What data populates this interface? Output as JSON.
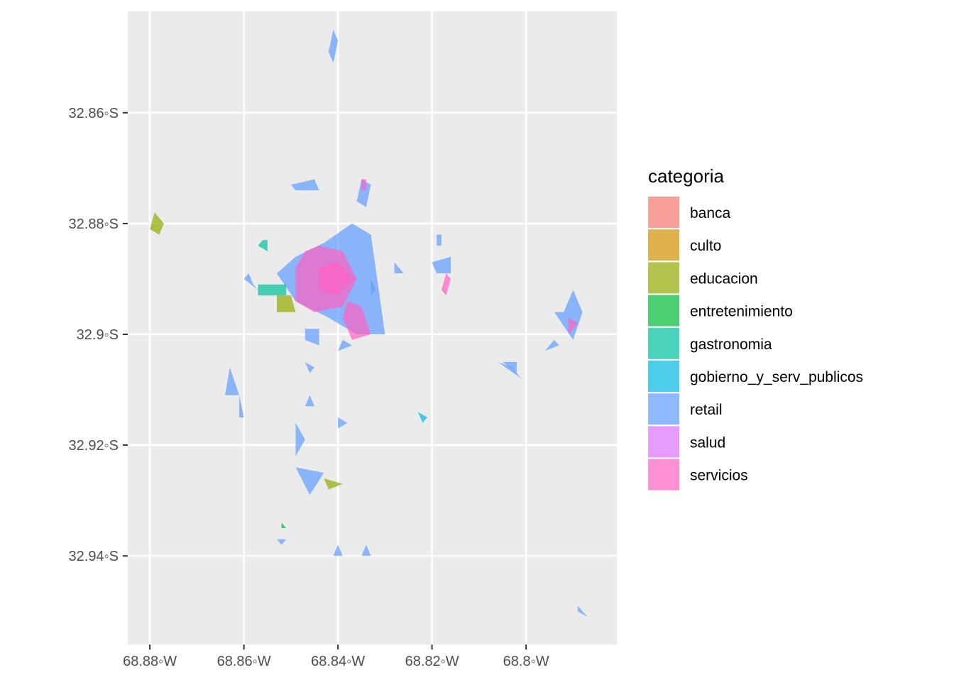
{
  "chart_data": {
    "type": "map",
    "x_ticks": [
      {
        "value": -68.88,
        "label": "68.88◦W"
      },
      {
        "value": -68.86,
        "label": "68.86◦W"
      },
      {
        "value": -68.84,
        "label": "68.84◦W"
      },
      {
        "value": -68.82,
        "label": "68.82◦W"
      },
      {
        "value": -68.8,
        "label": "68.8◦W"
      }
    ],
    "y_ticks": [
      {
        "value": -32.86,
        "label": "32.86◦S"
      },
      {
        "value": -32.88,
        "label": "32.88◦S"
      },
      {
        "value": -32.9,
        "label": "32.9◦S"
      },
      {
        "value": -32.92,
        "label": "32.92◦S"
      },
      {
        "value": -32.94,
        "label": "32.94◦S"
      }
    ],
    "xlim": [
      -68.8847,
      -68.7807
    ],
    "ylim": [
      -32.956,
      -32.8417
    ],
    "grid": true,
    "legend": {
      "title": "categoria",
      "placement": "right",
      "entries": [
        {
          "key": "banca",
          "color": "#F8766D"
        },
        {
          "key": "culto",
          "color": "#D39200"
        },
        {
          "key": "educacion",
          "color": "#93AA00"
        },
        {
          "key": "entretenimiento",
          "color": "#00BA38"
        },
        {
          "key": "gastronomia",
          "color": "#00C19F"
        },
        {
          "key": "gobierno_y_serv_publicos",
          "color": "#00B9E3"
        },
        {
          "key": "retail",
          "color": "#619CFF"
        },
        {
          "key": "salud",
          "color": "#DB72FB"
        },
        {
          "key": "servicios",
          "color": "#FF61C3"
        }
      ]
    },
    "polygons": [
      {
        "category": "retail",
        "points": [
          [
            -68.843,
            -32.8835
          ],
          [
            -68.837,
            -32.88
          ],
          [
            -68.833,
            -32.882
          ],
          [
            -68.83,
            -32.9
          ],
          [
            -68.836,
            -32.9
          ],
          [
            -68.842,
            -32.897
          ],
          [
            -68.849,
            -32.894
          ],
          [
            -68.853,
            -32.889
          ],
          [
            -68.849,
            -32.886
          ]
        ]
      },
      {
        "category": "servicios",
        "points": [
          [
            -68.844,
            -32.884
          ],
          [
            -68.839,
            -32.885
          ],
          [
            -68.836,
            -32.89
          ],
          [
            -68.839,
            -32.895
          ],
          [
            -68.845,
            -32.896
          ],
          [
            -68.849,
            -32.894
          ],
          [
            -68.849,
            -32.888
          ],
          [
            -68.847,
            -32.885
          ]
        ]
      },
      {
        "category": "servicios",
        "points": [
          [
            -68.84,
            -32.887
          ],
          [
            -68.837,
            -32.89
          ],
          [
            -68.84,
            -32.893
          ],
          [
            -68.844,
            -32.892
          ],
          [
            -68.844,
            -32.888
          ]
        ]
      },
      {
        "category": "servicios",
        "points": [
          [
            -68.838,
            -32.894
          ],
          [
            -68.835,
            -32.895
          ],
          [
            -68.833,
            -32.9
          ],
          [
            -68.837,
            -32.901
          ],
          [
            -68.839,
            -32.897
          ]
        ]
      },
      {
        "category": "retail",
        "points": [
          [
            -68.841,
            -32.845
          ],
          [
            -68.84,
            -32.847
          ],
          [
            -68.841,
            -32.851
          ],
          [
            -68.842,
            -32.849
          ]
        ]
      },
      {
        "category": "retail",
        "points": [
          [
            -68.85,
            -32.873
          ],
          [
            -68.845,
            -32.872
          ],
          [
            -68.844,
            -32.874
          ],
          [
            -68.849,
            -32.874
          ]
        ]
      },
      {
        "category": "retail",
        "points": [
          [
            -68.835,
            -32.872
          ],
          [
            -68.833,
            -32.873
          ],
          [
            -68.834,
            -32.877
          ],
          [
            -68.836,
            -32.876
          ]
        ]
      },
      {
        "category": "servicios",
        "points": [
          [
            -68.835,
            -32.872
          ],
          [
            -68.834,
            -32.872
          ],
          [
            -68.834,
            -32.874
          ],
          [
            -68.835,
            -32.874
          ]
        ]
      },
      {
        "category": "educacion",
        "points": [
          [
            -68.879,
            -32.878
          ],
          [
            -68.877,
            -32.88
          ],
          [
            -68.878,
            -32.882
          ],
          [
            -68.88,
            -32.881
          ]
        ]
      },
      {
        "category": "gastronomia",
        "points": [
          [
            -68.856,
            -32.883
          ],
          [
            -68.855,
            -32.883
          ],
          [
            -68.855,
            -32.885
          ],
          [
            -68.857,
            -32.884
          ]
        ]
      },
      {
        "category": "retail",
        "points": [
          [
            -68.859,
            -32.889
          ],
          [
            -68.858,
            -32.891
          ],
          [
            -68.857,
            -32.892
          ],
          [
            -68.86,
            -32.89
          ]
        ]
      },
      {
        "category": "gastronomia",
        "points": [
          [
            -68.857,
            -32.891
          ],
          [
            -68.851,
            -32.891
          ],
          [
            -68.851,
            -32.893
          ],
          [
            -68.857,
            -32.893
          ]
        ]
      },
      {
        "category": "educacion",
        "points": [
          [
            -68.853,
            -32.893
          ],
          [
            -68.85,
            -32.893
          ],
          [
            -68.849,
            -32.896
          ],
          [
            -68.853,
            -32.896
          ]
        ]
      },
      {
        "category": "retail",
        "points": [
          [
            -68.819,
            -32.882
          ],
          [
            -68.818,
            -32.882
          ],
          [
            -68.818,
            -32.884
          ],
          [
            -68.819,
            -32.884
          ]
        ]
      },
      {
        "category": "retail",
        "points": [
          [
            -68.82,
            -32.887
          ],
          [
            -68.816,
            -32.886
          ],
          [
            -68.816,
            -32.889
          ],
          [
            -68.819,
            -32.889
          ]
        ]
      },
      {
        "category": "servicios",
        "points": [
          [
            -68.817,
            -32.889
          ],
          [
            -68.816,
            -32.89
          ],
          [
            -68.817,
            -32.893
          ],
          [
            -68.818,
            -32.892
          ]
        ]
      },
      {
        "category": "retail",
        "points": [
          [
            -68.828,
            -32.887
          ],
          [
            -68.826,
            -32.889
          ],
          [
            -68.828,
            -32.889
          ]
        ]
      },
      {
        "category": "retail",
        "points": [
          [
            -68.833,
            -32.89
          ],
          [
            -68.832,
            -32.892
          ],
          [
            -68.833,
            -32.893
          ]
        ]
      },
      {
        "category": "retail",
        "points": [
          [
            -68.794,
            -32.901
          ],
          [
            -68.796,
            -32.903
          ],
          [
            -68.793,
            -32.902
          ]
        ]
      },
      {
        "category": "retail",
        "points": [
          [
            -68.805,
            -32.905
          ],
          [
            -68.802,
            -32.907
          ],
          [
            -68.802,
            -32.905
          ]
        ]
      },
      {
        "category": "retail",
        "points": [
          [
            -68.806,
            -32.905
          ],
          [
            -68.803,
            -32.906
          ],
          [
            -68.801,
            -32.908
          ]
        ]
      },
      {
        "category": "retail",
        "points": [
          [
            -68.794,
            -32.896
          ],
          [
            -68.792,
            -32.896
          ],
          [
            -68.79,
            -32.892
          ],
          [
            -68.788,
            -32.896
          ],
          [
            -68.79,
            -32.901
          ]
        ]
      },
      {
        "category": "servicios",
        "points": [
          [
            -68.791,
            -32.897
          ],
          [
            -68.789,
            -32.898
          ],
          [
            -68.791,
            -32.9
          ]
        ]
      },
      {
        "category": "retail",
        "points": [
          [
            -68.847,
            -32.899
          ],
          [
            -68.844,
            -32.899
          ],
          [
            -68.844,
            -32.902
          ],
          [
            -68.847,
            -32.901
          ]
        ]
      },
      {
        "category": "retail",
        "points": [
          [
            -68.839,
            -32.901
          ],
          [
            -68.837,
            -32.902
          ],
          [
            -68.84,
            -32.903
          ]
        ]
      },
      {
        "category": "retail",
        "points": [
          [
            -68.847,
            -32.905
          ],
          [
            -68.846,
            -32.907
          ],
          [
            -68.845,
            -32.906
          ]
        ]
      },
      {
        "category": "retail",
        "points": [
          [
            -68.863,
            -32.906
          ],
          [
            -68.861,
            -32.911
          ],
          [
            -68.864,
            -32.911
          ]
        ]
      },
      {
        "category": "retail",
        "points": [
          [
            -68.861,
            -32.911
          ],
          [
            -68.86,
            -32.915
          ],
          [
            -68.861,
            -32.915
          ]
        ]
      },
      {
        "category": "retail",
        "points": [
          [
            -68.846,
            -32.911
          ],
          [
            -68.845,
            -32.913
          ],
          [
            -68.847,
            -32.913
          ]
        ]
      },
      {
        "category": "retail",
        "points": [
          [
            -68.84,
            -32.915
          ],
          [
            -68.838,
            -32.916
          ],
          [
            -68.84,
            -32.917
          ]
        ]
      },
      {
        "category": "retail",
        "points": [
          [
            -68.849,
            -32.916
          ],
          [
            -68.847,
            -32.919
          ],
          [
            -68.849,
            -32.922
          ]
        ]
      },
      {
        "category": "retail",
        "points": [
          [
            -68.849,
            -32.924
          ],
          [
            -68.843,
            -32.925
          ],
          [
            -68.846,
            -32.929
          ]
        ]
      },
      {
        "category": "educacion",
        "points": [
          [
            -68.843,
            -32.926
          ],
          [
            -68.842,
            -32.928
          ],
          [
            -68.839,
            -32.927
          ]
        ]
      },
      {
        "category": "entretenimiento",
        "points": [
          [
            -68.852,
            -32.934
          ],
          [
            -68.851,
            -32.935
          ],
          [
            -68.852,
            -32.935
          ]
        ]
      },
      {
        "category": "retail",
        "points": [
          [
            -68.853,
            -32.937
          ],
          [
            -68.852,
            -32.938
          ],
          [
            -68.851,
            -32.937
          ]
        ]
      },
      {
        "category": "retail",
        "points": [
          [
            -68.84,
            -32.938
          ],
          [
            -68.839,
            -32.94
          ],
          [
            -68.841,
            -32.94
          ]
        ]
      },
      {
        "category": "retail",
        "points": [
          [
            -68.834,
            -32.938
          ],
          [
            -68.833,
            -32.94
          ],
          [
            -68.835,
            -32.94
          ]
        ]
      },
      {
        "category": "retail",
        "points": [
          [
            -68.789,
            -32.949
          ],
          [
            -68.787,
            -32.951
          ],
          [
            -68.789,
            -32.95
          ]
        ]
      },
      {
        "category": "gobierno_y_serv_publicos",
        "points": [
          [
            -68.823,
            -32.914
          ],
          [
            -68.822,
            -32.916
          ],
          [
            -68.821,
            -32.915
          ]
        ]
      }
    ]
  }
}
